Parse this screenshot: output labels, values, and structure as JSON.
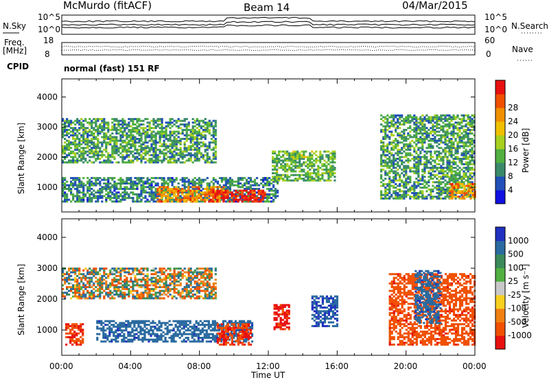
{
  "header": {
    "station": "McMurdo (fitACF)",
    "beam": "Beam 14",
    "date": "04/Mar/2015"
  },
  "noise_panel": {
    "left_label": "N.Sky",
    "left_ticks": [
      "10^5",
      "10^0"
    ],
    "right_label": "N.Search",
    "right_ticks": [
      "10^5",
      "10^0"
    ]
  },
  "freq_panel": {
    "left_label_1": "Freq.",
    "left_label_2": "[MHz]",
    "left_ticks": [
      "18",
      "8"
    ],
    "right_label": "Nave",
    "right_ticks": [
      "60",
      "0"
    ]
  },
  "cpid": {
    "label": "CPID",
    "value": "normal (fast) 151 RF"
  },
  "time_axis": {
    "title": "Time UT",
    "ticks": [
      "00:00",
      "04:00",
      "08:00",
      "12:00",
      "16:00",
      "20:00",
      "00:00"
    ]
  },
  "power_panel": {
    "ylabel": "Slant Range [km]",
    "yticks": [
      "1000",
      "2000",
      "3000",
      "4000"
    ],
    "colorbar_label": "Power [dB]",
    "colorbar_ticks": [
      "4",
      "8",
      "12",
      "16",
      "20",
      "24",
      "28"
    ],
    "colors": [
      "#1010e0",
      "#2050b8",
      "#3a8a6a",
      "#50b040",
      "#a8d020",
      "#f0c000",
      "#f09000",
      "#f05000",
      "#e81010"
    ]
  },
  "velocity_panel": {
    "ylabel": "Slant Range [km]",
    "yticks": [
      "1000",
      "2000",
      "3000",
      "4000"
    ],
    "colorbar_label": "Velocity [m s⁻¹]",
    "colorbar_ticks": [
      "1000",
      "500",
      "100",
      "25",
      "-25",
      "-100",
      "-500",
      "-1000"
    ],
    "colors": [
      "#2030c0",
      "#2a6aa0",
      "#3a8a5a",
      "#50b040",
      "#c8c8c8",
      "#f8d020",
      "#f08010",
      "#f05000",
      "#e81010"
    ]
  },
  "chart_data": [
    {
      "type": "heatmap",
      "title": "Power",
      "xlabel": "Time UT",
      "ylabel": "Slant Range [km]",
      "xlim_hours": [
        0,
        24
      ],
      "ylim_km": [
        180,
        4600
      ],
      "value_label": "Power [dB]",
      "value_range": [
        0,
        30
      ],
      "echo_regions": [
        {
          "t": [
            0,
            12.5
          ],
          "range_km": [
            500,
            1300
          ],
          "power_db": 8
        },
        {
          "t": [
            5.5,
            9.5
          ],
          "range_km": [
            500,
            1000
          ],
          "power_db": 22
        },
        {
          "t": [
            8.5,
            11.8
          ],
          "range_km": [
            500,
            900
          ],
          "power_db": 28
        },
        {
          "t": [
            0,
            9
          ],
          "range_km": [
            1800,
            3300
          ],
          "power_db": 10
        },
        {
          "t": [
            12.2,
            15.8
          ],
          "range_km": [
            1200,
            2200
          ],
          "power_db": 12
        },
        {
          "t": [
            18.5,
            24
          ],
          "range_km": [
            600,
            3400
          ],
          "power_db": 10
        },
        {
          "t": [
            22.5,
            24
          ],
          "range_km": [
            600,
            1100
          ],
          "power_db": 22
        }
      ]
    },
    {
      "type": "heatmap",
      "title": "Velocity",
      "xlabel": "Time UT",
      "ylabel": "Slant Range [km]",
      "xlim_hours": [
        0,
        24
      ],
      "ylim_km": [
        180,
        4600
      ],
      "value_label": "Velocity [m s⁻¹]",
      "value_range": [
        -1000,
        1000
      ],
      "echo_regions": [
        {
          "t": [
            0,
            9
          ],
          "range_km": [
            2000,
            3000
          ],
          "velocity_ms": 0
        },
        {
          "t": [
            2,
            11
          ],
          "range_km": [
            600,
            1300
          ],
          "velocity_ms": 150
        },
        {
          "t": [
            9,
            11
          ],
          "range_km": [
            500,
            1200
          ],
          "velocity_ms": -200
        },
        {
          "t": [
            0.2,
            1.2
          ],
          "range_km": [
            500,
            1200
          ],
          "velocity_ms": -200
        },
        {
          "t": [
            12.3,
            13.2
          ],
          "range_km": [
            1000,
            1800
          ],
          "velocity_ms": -250
        },
        {
          "t": [
            14.5,
            16
          ],
          "range_km": [
            1100,
            2100
          ],
          "velocity_ms": 200
        },
        {
          "t": [
            19,
            24
          ],
          "range_km": [
            500,
            2800
          ],
          "velocity_ms": -150
        },
        {
          "t": [
            20.5,
            22
          ],
          "range_km": [
            1200,
            2900
          ],
          "velocity_ms": 150
        }
      ]
    }
  ]
}
